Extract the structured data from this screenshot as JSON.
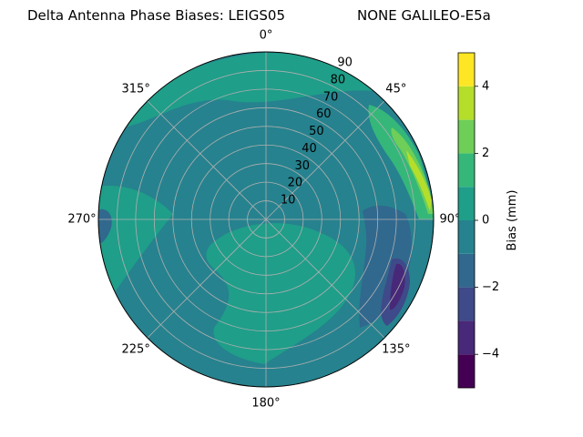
{
  "title_left": "Delta Antenna Phase Biases: LEIGS05",
  "title_right": "NONE GALILEO-E5a",
  "chart_data": {
    "type": "heatmap",
    "projection": "polar",
    "angular_tick_labels": [
      "0°",
      "45°",
      "90°",
      "135°",
      "180°",
      "225°",
      "270°",
      "315°"
    ],
    "radial_tick_labels": [
      "10",
      "20",
      "30",
      "40",
      "50",
      "60",
      "70",
      "80",
      "90"
    ],
    "radial_lim": [
      0,
      90
    ],
    "grid": true,
    "colorbar": {
      "label": "Bias (mm)",
      "range": [
        -5,
        5
      ],
      "levels": [
        -5,
        -4,
        -3,
        -2,
        -1,
        0,
        1,
        2,
        3,
        4,
        5
      ],
      "tick_labels": [
        "−4",
        "−2",
        "0",
        "2",
        "4"
      ],
      "tick_values": [
        -4,
        -2,
        0,
        2,
        4
      ],
      "colormap": "viridis"
    },
    "regions": [
      {
        "name": "background",
        "value": -0.5,
        "color": "#26828e"
      },
      {
        "name": "outer-ring-top",
        "value": 0.5,
        "color": "#1f9e89"
      },
      {
        "name": "center-south-blob",
        "value": 0.5,
        "color": "#1f9e89"
      },
      {
        "name": "west-blob",
        "value": 0.5,
        "color": "#1f9e89"
      },
      {
        "name": "northeast-edge",
        "value": 1.5,
        "color": "#35b779"
      },
      {
        "name": "northeast-edge-high",
        "value": 2.5,
        "color": "#6ece58"
      },
      {
        "name": "northeast-edge-peak",
        "value": 3.5,
        "color": "#b5de2b"
      },
      {
        "name": "east-low",
        "value": -1.5,
        "color": "#31688e"
      },
      {
        "name": "southeast-low",
        "value": -2.5,
        "color": "#3e4a89"
      },
      {
        "name": "southeast-min",
        "value": -3.5,
        "color": "#482878"
      },
      {
        "name": "west-low",
        "value": -1.5,
        "color": "#31688e"
      }
    ]
  }
}
